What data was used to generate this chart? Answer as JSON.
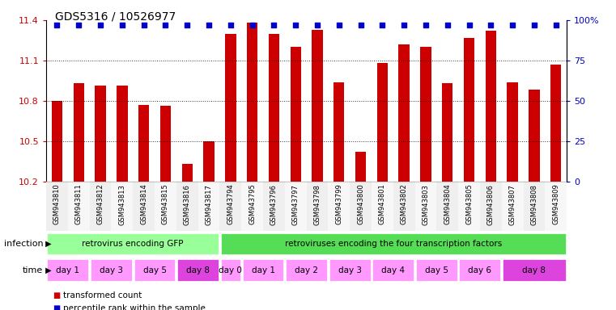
{
  "title": "GDS5316 / 10526977",
  "samples": [
    "GSM943810",
    "GSM943811",
    "GSM943812",
    "GSM943813",
    "GSM943814",
    "GSM943815",
    "GSM943816",
    "GSM943817",
    "GSM943794",
    "GSM943795",
    "GSM943796",
    "GSM943797",
    "GSM943798",
    "GSM943799",
    "GSM943800",
    "GSM943801",
    "GSM943802",
    "GSM943803",
    "GSM943804",
    "GSM943805",
    "GSM943806",
    "GSM943807",
    "GSM943808",
    "GSM943809"
  ],
  "bar_values": [
    10.8,
    10.93,
    10.91,
    10.91,
    10.77,
    10.76,
    10.33,
    10.5,
    11.3,
    11.38,
    11.3,
    11.2,
    11.33,
    10.94,
    10.42,
    11.08,
    11.22,
    11.2,
    10.93,
    11.27,
    11.32,
    10.94,
    10.88,
    11.07
  ],
  "percentile_values": [
    97,
    97,
    97,
    97,
    97,
    97,
    97,
    97,
    97,
    97,
    97,
    97,
    97,
    97,
    97,
    97,
    97,
    97,
    97,
    97,
    97,
    97,
    97,
    97
  ],
  "ylim_left": [
    10.2,
    11.4
  ],
  "ylim_right": [
    0,
    100
  ],
  "yticks_left": [
    10.2,
    10.5,
    10.8,
    11.1,
    11.4
  ],
  "yticks_right": [
    0,
    25,
    50,
    75,
    100
  ],
  "bar_color": "#cc0000",
  "dot_color": "#0000cc",
  "bg_color": "#ffffff",
  "grid_color": "#000000",
  "infection_groups": [
    {
      "label": "retrovirus encoding GFP",
      "start": 0,
      "end": 8,
      "color": "#99ff99"
    },
    {
      "label": "retroviruses encoding the four transcription factors",
      "start": 8,
      "end": 24,
      "color": "#55dd55"
    }
  ],
  "time_groups": [
    {
      "label": "day 1",
      "start": 0,
      "end": 2,
      "color": "#ff99ff"
    },
    {
      "label": "day 3",
      "start": 2,
      "end": 4,
      "color": "#ff99ff"
    },
    {
      "label": "day 5",
      "start": 4,
      "end": 6,
      "color": "#ff99ff"
    },
    {
      "label": "day 8",
      "start": 6,
      "end": 8,
      "color": "#dd44dd"
    },
    {
      "label": "day 0",
      "start": 8,
      "end": 9,
      "color": "#ff99ff"
    },
    {
      "label": "day 1",
      "start": 9,
      "end": 11,
      "color": "#ff99ff"
    },
    {
      "label": "day 2",
      "start": 11,
      "end": 13,
      "color": "#ff99ff"
    },
    {
      "label": "day 3",
      "start": 13,
      "end": 15,
      "color": "#ff99ff"
    },
    {
      "label": "day 4",
      "start": 15,
      "end": 17,
      "color": "#ff99ff"
    },
    {
      "label": "day 5",
      "start": 17,
      "end": 19,
      "color": "#ff99ff"
    },
    {
      "label": "day 6",
      "start": 19,
      "end": 21,
      "color": "#ff99ff"
    },
    {
      "label": "day 8",
      "start": 21,
      "end": 24,
      "color": "#dd44dd"
    }
  ],
  "legend_items": [
    {
      "label": "transformed count",
      "color": "#cc0000",
      "marker": "s"
    },
    {
      "label": "percentile rank within the sample",
      "color": "#0000cc",
      "marker": "s"
    }
  ]
}
